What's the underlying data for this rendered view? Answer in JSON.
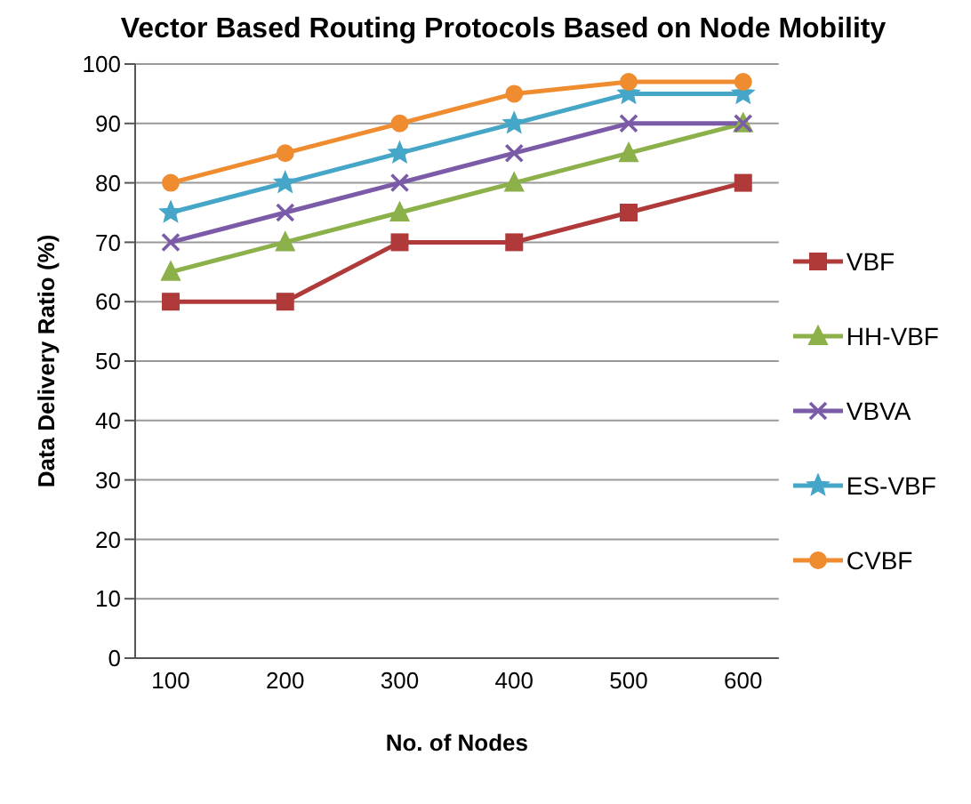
{
  "chart_data": {
    "type": "line",
    "title": "Vector Based Routing Protocols Based on Node Mobility",
    "xlabel": "No. of Nodes",
    "ylabel": "Data Delivery Ratio (%)",
    "categories": [
      "100",
      "200",
      "300",
      "400",
      "500",
      "600"
    ],
    "series": [
      {
        "name": "VBF",
        "color": "#b03a3a",
        "marker": "square",
        "values": [
          60,
          60,
          70,
          70,
          75,
          80
        ]
      },
      {
        "name": "HH-VBF",
        "color": "#8cb04a",
        "marker": "triangle",
        "values": [
          65,
          70,
          75,
          80,
          85,
          90
        ]
      },
      {
        "name": "VBVA",
        "color": "#7b5ba8",
        "marker": "cross",
        "values": [
          70,
          75,
          80,
          85,
          90,
          90
        ]
      },
      {
        "name": "ES-VBF",
        "color": "#45a6c8",
        "marker": "star",
        "values": [
          75,
          80,
          85,
          90,
          95,
          95
        ]
      },
      {
        "name": "CVBF",
        "color": "#f08c30",
        "marker": "circle",
        "values": [
          80,
          85,
          90,
          95,
          97,
          97
        ]
      }
    ],
    "ylim": [
      0,
      100
    ],
    "yticks": [
      0,
      10,
      20,
      30,
      40,
      50,
      60,
      70,
      80,
      90,
      100
    ],
    "grid": "y",
    "legend": "right"
  }
}
